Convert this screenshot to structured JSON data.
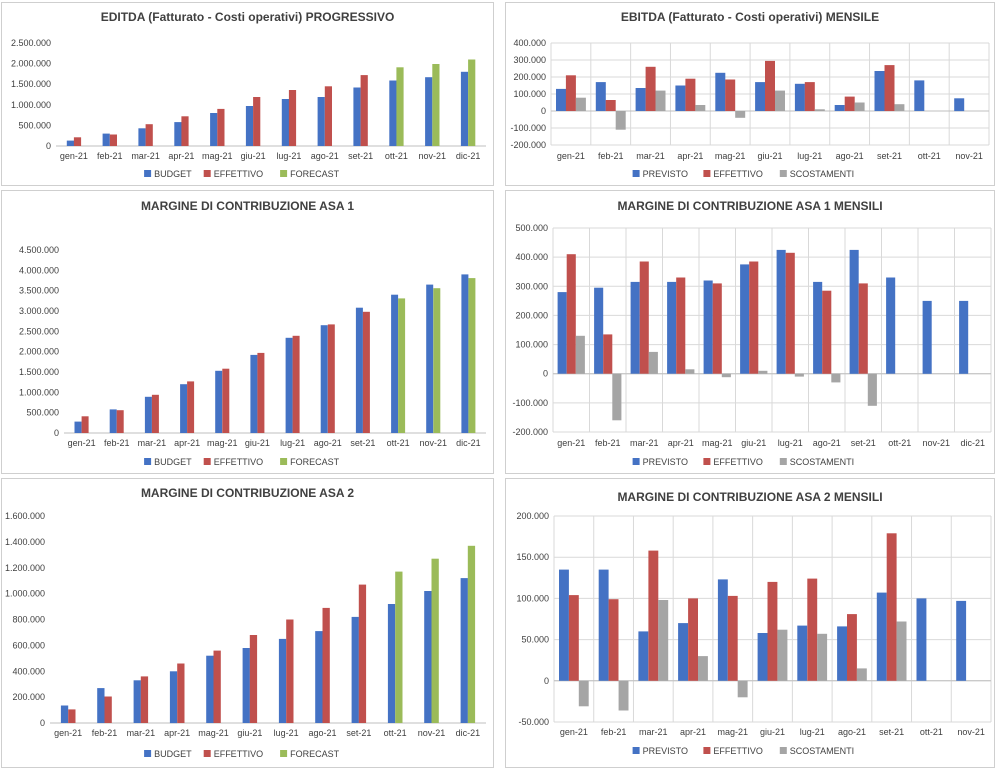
{
  "chart_data": [
    {
      "type": "bar",
      "title": "EDITDA (Fatturato - Costi operativi) PROGRESSIVO",
      "categories": [
        "gen-21",
        "feb-21",
        "mar-21",
        "apr-21",
        "mag-21",
        "giu-21",
        "lug-21",
        "ago-21",
        "set-21",
        "ott-21",
        "nov-21",
        "dic-21"
      ],
      "ylim": [
        0,
        2500000
      ],
      "ytick_step": 500000,
      "yticks": [
        "0",
        "500.000",
        "1.000.000",
        "1.500.000",
        "2.000.000",
        "2.500.000"
      ],
      "grid": false,
      "legend": "bottom",
      "series": [
        {
          "name": "BUDGET",
          "color": "#4472C4",
          "values": [
            130000,
            300000,
            430000,
            580000,
            800000,
            970000,
            1140000,
            1190000,
            1420000,
            1590000,
            1670000,
            1800000
          ]
        },
        {
          "name": "EFFETTIVO",
          "color": "#C0504D",
          "values": [
            210000,
            280000,
            530000,
            720000,
            900000,
            1190000,
            1360000,
            1450000,
            1720000,
            null,
            null,
            null
          ]
        },
        {
          "name": "FORECAST",
          "color": "#9BBB59",
          "values": [
            null,
            null,
            null,
            null,
            null,
            null,
            null,
            null,
            null,
            1910000,
            1990000,
            2100000
          ]
        }
      ]
    },
    {
      "type": "bar",
      "title": "EBITDA (Fatturato - Costi operativi) MENSILE",
      "categories": [
        "gen-21",
        "feb-21",
        "mar-21",
        "apr-21",
        "mag-21",
        "giu-21",
        "lug-21",
        "ago-21",
        "set-21",
        "ott-21",
        "nov-21"
      ],
      "ylim": [
        -200000,
        400000
      ],
      "ytick_step": 100000,
      "yticks": [
        "-200.000",
        "-100.000",
        "0",
        "100.000",
        "200.000",
        "300.000",
        "400.000"
      ],
      "grid": true,
      "legend": "bottom",
      "series": [
        {
          "name": "PREVISTO",
          "color": "#4472C4",
          "values": [
            130000,
            170000,
            135000,
            150000,
            225000,
            170000,
            160000,
            35000,
            235000,
            180000,
            75000
          ]
        },
        {
          "name": "EFFETTIVO",
          "color": "#C0504D",
          "values": [
            210000,
            65000,
            260000,
            190000,
            185000,
            295000,
            170000,
            85000,
            270000,
            null,
            null
          ]
        },
        {
          "name": "SCOSTAMENTI",
          "color": "#A5A5A5",
          "values": [
            78000,
            -110000,
            120000,
            35000,
            -40000,
            120000,
            10000,
            50000,
            40000,
            null,
            null
          ]
        }
      ]
    },
    {
      "type": "bar",
      "title": "MARGINE DI CONTRIBUZIONE ASA 1",
      "categories": [
        "gen-21",
        "feb-21",
        "mar-21",
        "apr-21",
        "mag-21",
        "giu-21",
        "lug-21",
        "ago-21",
        "set-21",
        "ott-21",
        "nov-21",
        "dic-21"
      ],
      "ylim": [
        0,
        4500000
      ],
      "ytick_step": 500000,
      "yticks": [
        "0",
        "500.000",
        "1.000.000",
        "1.500.000",
        "2.000.000",
        "2.500.000",
        "3.000.000",
        "3.500.000",
        "4.000.000",
        "4.500.000"
      ],
      "grid": false,
      "legend": "bottom",
      "series": [
        {
          "name": "BUDGET",
          "color": "#4472C4",
          "values": [
            280000,
            580000,
            890000,
            1200000,
            1530000,
            1920000,
            2340000,
            2650000,
            3080000,
            3400000,
            3650000,
            3900000
          ]
        },
        {
          "name": "EFFETTIVO",
          "color": "#C0504D",
          "values": [
            410000,
            560000,
            940000,
            1270000,
            1580000,
            1970000,
            2390000,
            2670000,
            2980000,
            null,
            null,
            null
          ]
        },
        {
          "name": "FORECAST",
          "color": "#9BBB59",
          "values": [
            null,
            null,
            null,
            null,
            null,
            null,
            null,
            null,
            null,
            3310000,
            3560000,
            3810000
          ]
        }
      ]
    },
    {
      "type": "bar",
      "title": "MARGINE DI CONTRIBUZIONE ASA 1 MENSILI",
      "categories": [
        "gen-21",
        "feb-21",
        "mar-21",
        "apr-21",
        "mag-21",
        "giu-21",
        "lug-21",
        "ago-21",
        "set-21",
        "ott-21",
        "nov-21",
        "dic-21"
      ],
      "ylim": [
        -200000,
        500000
      ],
      "ytick_step": 100000,
      "yticks": [
        "-200.000",
        "-100.000",
        "0",
        "100.000",
        "200.000",
        "300.000",
        "400.000",
        "500.000"
      ],
      "grid": true,
      "legend": "bottom",
      "series": [
        {
          "name": "PREVISTO",
          "color": "#4472C4",
          "values": [
            280000,
            295000,
            315000,
            315000,
            320000,
            375000,
            425000,
            315000,
            425000,
            330000,
            250000,
            250000
          ]
        },
        {
          "name": "EFFETTIVO",
          "color": "#C0504D",
          "values": [
            410000,
            135000,
            385000,
            330000,
            310000,
            385000,
            415000,
            285000,
            310000,
            null,
            null,
            null
          ]
        },
        {
          "name": "SCOSTAMENTI",
          "color": "#A5A5A5",
          "values": [
            130000,
            -160000,
            75000,
            15000,
            -12000,
            10000,
            -10000,
            -30000,
            -110000,
            null,
            null,
            null
          ]
        }
      ]
    },
    {
      "type": "bar",
      "title": "MARGINE DI CONTRIBUZIONE ASA 2",
      "categories": [
        "gen-21",
        "feb-21",
        "mar-21",
        "apr-21",
        "mag-21",
        "giu-21",
        "lug-21",
        "ago-21",
        "set-21",
        "ott-21",
        "nov-21",
        "dic-21"
      ],
      "ylim": [
        0,
        1600000
      ],
      "ytick_step": 200000,
      "yticks": [
        "0",
        "200.000",
        "400.000",
        "600.000",
        "800.000",
        "1.000.000",
        "1.200.000",
        "1.400.000",
        "1.600.000"
      ],
      "grid": false,
      "legend": "bottom",
      "series": [
        {
          "name": "BUDGET",
          "color": "#4472C4",
          "values": [
            135000,
            270000,
            330000,
            400000,
            520000,
            580000,
            650000,
            710000,
            820000,
            920000,
            1020000,
            1120000
          ]
        },
        {
          "name": "EFFETTIVO",
          "color": "#C0504D",
          "values": [
            105000,
            205000,
            360000,
            460000,
            560000,
            680000,
            800000,
            890000,
            1070000,
            null,
            null,
            null
          ]
        },
        {
          "name": "FORECAST",
          "color": "#9BBB59",
          "values": [
            null,
            null,
            null,
            null,
            null,
            null,
            null,
            null,
            null,
            1170000,
            1270000,
            1370000
          ]
        }
      ]
    },
    {
      "type": "bar",
      "title": "MARGINE DI CONTRIBUZIONE ASA 2 MENSILI",
      "categories": [
        "gen-21",
        "feb-21",
        "mar-21",
        "apr-21",
        "mag-21",
        "giu-21",
        "lug-21",
        "ago-21",
        "set-21",
        "ott-21",
        "nov-21"
      ],
      "ylim": [
        -50000,
        200000
      ],
      "ytick_step": 50000,
      "yticks": [
        "-50.000",
        "0",
        "50.000",
        "100.000",
        "150.000",
        "200.000"
      ],
      "grid": true,
      "legend": "bottom",
      "series": [
        {
          "name": "PREVISTO",
          "color": "#4472C4",
          "values": [
            135000,
            135000,
            60000,
            70000,
            123000,
            58000,
            67000,
            66000,
            107000,
            100000,
            97000
          ]
        },
        {
          "name": "EFFETTIVO",
          "color": "#C0504D",
          "values": [
            104000,
            99000,
            158000,
            100000,
            103000,
            120000,
            124000,
            81000,
            179000,
            null,
            null
          ]
        },
        {
          "name": "SCOSTAMENTI",
          "color": "#A5A5A5",
          "values": [
            -31000,
            -36000,
            98000,
            30000,
            -20000,
            62000,
            57000,
            15000,
            72000,
            null,
            null
          ]
        }
      ]
    }
  ]
}
